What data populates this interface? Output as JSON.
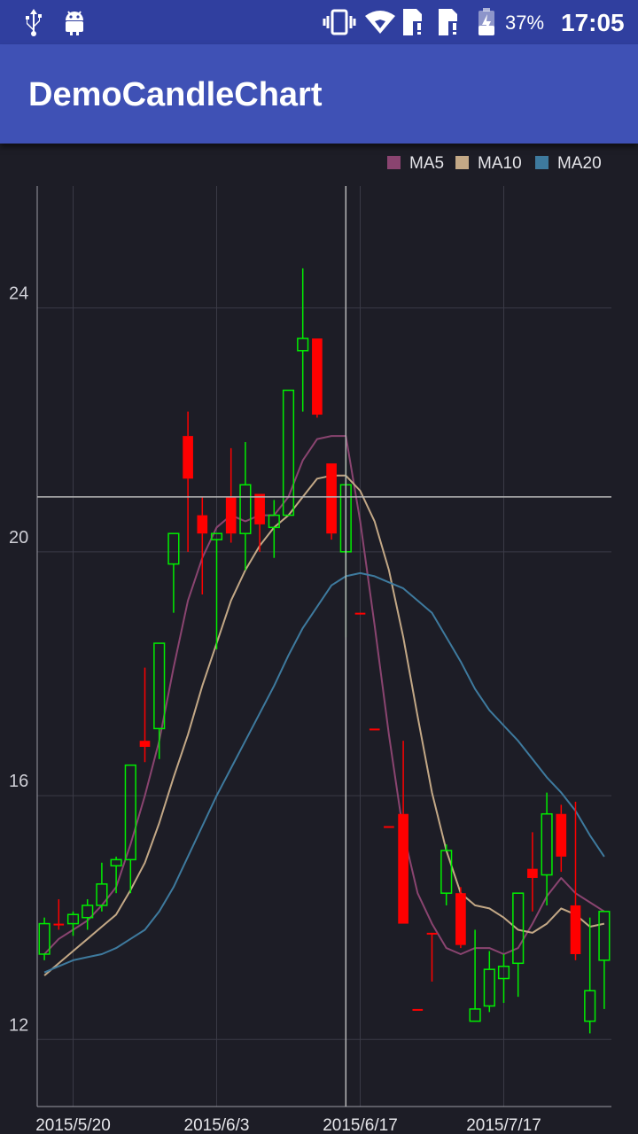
{
  "status_bar": {
    "icons": [
      "usb-icon",
      "android-debug-icon",
      "vibrate-icon",
      "wifi-icon",
      "sim-1-alert-icon",
      "sim-2-alert-icon",
      "battery-charging-icon"
    ],
    "battery_percent": "37%",
    "time": "17:05"
  },
  "app_bar": {
    "title": "DemoCandleChart"
  },
  "colors": {
    "status_bar": "#303f9f",
    "app_bar": "#3f51b5",
    "background": "#1d1d26",
    "rise": "#00ee00",
    "fall": "#ff0000",
    "ma5": "#8a4470",
    "ma10": "#c3a886",
    "ma20": "#3e7a9e",
    "crosshair": "#b8b8b8"
  },
  "chart_data": {
    "type": "candlestick",
    "title": "",
    "xlabel": "",
    "ylabel": "",
    "ylim": [
      10.9,
      26.0
    ],
    "yticks": [
      12,
      16,
      20,
      24
    ],
    "xtick_labels": [
      {
        "index": 2,
        "label": "2015/5/20"
      },
      {
        "index": 12,
        "label": "2015/6/3"
      },
      {
        "index": 22,
        "label": "2015/6/17"
      },
      {
        "index": 32,
        "label": "2015/7/17"
      }
    ],
    "legend": {
      "position": "top-right",
      "entries": [
        "MA5",
        "MA10",
        "MA20"
      ]
    },
    "grid": true,
    "crosshair": {
      "index": 21,
      "value": 20.9
    },
    "candles": [
      {
        "o": 13.4,
        "h": 14.0,
        "l": 13.3,
        "c": 13.9,
        "dir": "up"
      },
      {
        "o": 13.9,
        "h": 14.3,
        "l": 13.8,
        "c": 13.9,
        "dir": "down"
      },
      {
        "o": 13.9,
        "h": 14.1,
        "l": 13.7,
        "c": 14.05,
        "dir": "up"
      },
      {
        "o": 14.0,
        "h": 14.3,
        "l": 13.8,
        "c": 14.2,
        "dir": "up"
      },
      {
        "o": 14.2,
        "h": 14.9,
        "l": 14.1,
        "c": 14.55,
        "dir": "up"
      },
      {
        "o": 14.85,
        "h": 15.0,
        "l": 14.4,
        "c": 14.95,
        "dir": "up"
      },
      {
        "o": 14.95,
        "h": 16.5,
        "l": 14.4,
        "c": 16.5,
        "dir": "up"
      },
      {
        "o": 16.9,
        "h": 18.1,
        "l": 16.55,
        "c": 16.8,
        "dir": "down"
      },
      {
        "o": 17.1,
        "h": 18.5,
        "l": 16.6,
        "c": 18.5,
        "dir": "up"
      },
      {
        "o": 19.8,
        "h": 20.3,
        "l": 19.0,
        "c": 20.3,
        "dir": "up"
      },
      {
        "o": 21.9,
        "h": 22.3,
        "l": 20.0,
        "c": 21.2,
        "dir": "down"
      },
      {
        "o": 20.6,
        "h": 20.9,
        "l": 19.3,
        "c": 20.3,
        "dir": "down"
      },
      {
        "o": 20.2,
        "h": 20.3,
        "l": 18.4,
        "c": 20.3,
        "dir": "up"
      },
      {
        "o": 20.9,
        "h": 21.7,
        "l": 20.15,
        "c": 20.3,
        "dir": "down"
      },
      {
        "o": 20.3,
        "h": 21.8,
        "l": 19.7,
        "c": 21.1,
        "dir": "up"
      },
      {
        "o": 20.95,
        "h": 20.95,
        "l": 20.0,
        "c": 20.45,
        "dir": "down"
      },
      {
        "o": 20.4,
        "h": 20.85,
        "l": 19.9,
        "c": 20.6,
        "dir": "up"
      },
      {
        "o": 20.6,
        "h": 22.65,
        "l": 20.6,
        "c": 22.65,
        "dir": "up"
      },
      {
        "o": 23.3,
        "h": 24.65,
        "l": 22.3,
        "c": 23.5,
        "dir": "up"
      },
      {
        "o": 23.5,
        "h": 23.5,
        "l": 22.2,
        "c": 22.25,
        "dir": "down"
      },
      {
        "o": 21.45,
        "h": 21.45,
        "l": 20.2,
        "c": 20.3,
        "dir": "down"
      },
      {
        "o": 20.0,
        "h": 21.6,
        "l": 18.6,
        "c": 21.1,
        "dir": "up"
      },
      {
        "o": 19.0,
        "h": 19.0,
        "l": 19.0,
        "c": 19.0,
        "dir": "down"
      },
      {
        "o": 17.1,
        "h": 17.1,
        "l": 17.1,
        "c": 17.1,
        "dir": "down"
      },
      {
        "o": 15.5,
        "h": 15.5,
        "l": 15.5,
        "c": 15.5,
        "dir": "down"
      },
      {
        "o": 15.7,
        "h": 16.9,
        "l": 13.9,
        "c": 13.9,
        "dir": "down"
      },
      {
        "o": 12.5,
        "h": 12.5,
        "l": 12.5,
        "c": 12.5,
        "dir": "down"
      },
      {
        "o": 13.75,
        "h": 13.75,
        "l": 12.95,
        "c": 13.75,
        "dir": "down"
      },
      {
        "o": 14.4,
        "h": 15.2,
        "l": 14.2,
        "c": 15.1,
        "dir": "up"
      },
      {
        "o": 14.4,
        "h": 14.5,
        "l": 13.5,
        "c": 13.55,
        "dir": "down"
      },
      {
        "o": 12.3,
        "h": 13.8,
        "l": 12.3,
        "c": 12.5,
        "dir": "up"
      },
      {
        "o": 12.55,
        "h": 13.45,
        "l": 12.45,
        "c": 13.15,
        "dir": "up"
      },
      {
        "o": 13.0,
        "h": 13.4,
        "l": 12.6,
        "c": 13.2,
        "dir": "up"
      },
      {
        "o": 13.25,
        "h": 14.4,
        "l": 12.7,
        "c": 14.4,
        "dir": "up"
      },
      {
        "o": 14.8,
        "h": 15.4,
        "l": 14.1,
        "c": 14.65,
        "dir": "down"
      },
      {
        "o": 14.7,
        "h": 16.05,
        "l": 14.2,
        "c": 15.7,
        "dir": "up"
      },
      {
        "o": 15.7,
        "h": 15.85,
        "l": 14.75,
        "c": 15.0,
        "dir": "down"
      },
      {
        "o": 14.2,
        "h": 15.9,
        "l": 13.3,
        "c": 13.4,
        "dir": "down"
      },
      {
        "o": 12.3,
        "h": 14.0,
        "l": 12.1,
        "c": 12.8,
        "dir": "up"
      },
      {
        "o": 13.3,
        "h": 14.1,
        "l": 12.5,
        "c": 14.1,
        "dir": "up"
      }
    ],
    "series": [
      {
        "name": "MA5",
        "values": [
          13.4,
          13.65,
          13.8,
          13.95,
          14.2,
          14.5,
          15.2,
          16.0,
          16.9,
          18.1,
          19.2,
          19.9,
          20.4,
          20.6,
          20.5,
          20.6,
          20.6,
          20.9,
          21.5,
          21.85,
          21.9,
          21.9,
          20.5,
          18.8,
          17.0,
          15.4,
          14.4,
          13.9,
          13.5,
          13.4,
          13.5,
          13.5,
          13.4,
          13.5,
          13.9,
          14.35,
          14.65,
          14.4,
          14.25,
          14.1
        ]
      },
      {
        "name": "MA10",
        "values": [
          13.05,
          13.25,
          13.45,
          13.65,
          13.85,
          14.05,
          14.45,
          14.9,
          15.55,
          16.3,
          17.0,
          17.8,
          18.5,
          19.2,
          19.7,
          20.1,
          20.4,
          20.6,
          20.9,
          21.2,
          21.25,
          21.25,
          21.0,
          20.5,
          19.7,
          18.6,
          17.3,
          16.05,
          15.1,
          14.4,
          14.2,
          14.15,
          14.0,
          13.8,
          13.75,
          13.9,
          14.15,
          14.05,
          13.85,
          13.9
        ]
      },
      {
        "name": "MA20",
        "values": [
          13.1,
          13.2,
          13.3,
          13.35,
          13.4,
          13.5,
          13.65,
          13.8,
          14.1,
          14.5,
          15.0,
          15.5,
          16.0,
          16.45,
          16.9,
          17.35,
          17.8,
          18.3,
          18.75,
          19.1,
          19.45,
          19.6,
          19.65,
          19.6,
          19.5,
          19.4,
          19.2,
          19.0,
          18.6,
          18.2,
          17.75,
          17.4,
          17.15,
          16.9,
          16.6,
          16.3,
          16.05,
          15.75,
          15.35,
          15.0
        ]
      }
    ]
  }
}
